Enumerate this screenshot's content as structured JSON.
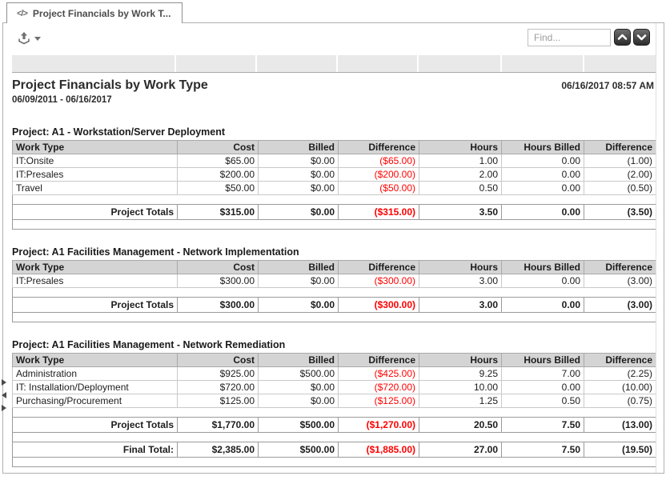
{
  "tab": {
    "icon_glyph": "</>",
    "label": "Project Financials by Work T..."
  },
  "toolbar": {
    "find_placeholder": "Find..."
  },
  "report": {
    "title": "Project Financials by Work Type",
    "date_range": "06/09/2011 - 06/16/2017",
    "generated": "06/16/2017 08:57 AM",
    "columns": [
      "Work Type",
      "Cost",
      "Billed",
      "Difference",
      "Hours",
      "Hours Billed",
      "Difference"
    ],
    "sections": [
      {
        "caption": "Project: A1 - Workstation/Server Deployment",
        "rows": [
          [
            "IT:Onsite",
            "$65.00",
            "$0.00",
            "($65.00)",
            "1.00",
            "0.00",
            "(1.00)"
          ],
          [
            "IT:Presales",
            "$200.00",
            "$0.00",
            "($200.00)",
            "2.00",
            "0.00",
            "(2.00)"
          ],
          [
            "Travel",
            "$50.00",
            "$0.00",
            "($50.00)",
            "0.50",
            "0.00",
            "(0.50)"
          ]
        ],
        "totals": {
          "label": "Project Totals",
          "values": [
            "$315.00",
            "$0.00",
            "($315.00)",
            "3.50",
            "0.00",
            "(3.50)"
          ]
        }
      },
      {
        "caption": "Project: A1 Facilities Management - Network Implementation",
        "rows": [
          [
            "IT:Presales",
            "$300.00",
            "$0.00",
            "($300.00)",
            "3.00",
            "0.00",
            "(3.00)"
          ]
        ],
        "totals": {
          "label": "Project Totals",
          "values": [
            "$300.00",
            "$0.00",
            "($300.00)",
            "3.00",
            "0.00",
            "(3.00)"
          ]
        }
      },
      {
        "caption": "Project: A1 Facilities Management - Network Remediation",
        "rows": [
          [
            "Administration",
            "$925.00",
            "$500.00",
            "($425.00)",
            "9.25",
            "7.00",
            "(2.25)"
          ],
          [
            "IT: Installation/Deployment",
            "$720.00",
            "$0.00",
            "($720.00)",
            "10.00",
            "0.00",
            "(10.00)"
          ],
          [
            "Purchasing/Procurement",
            "$125.00",
            "$0.00",
            "($125.00)",
            "1.25",
            "0.50",
            "(0.75)"
          ]
        ],
        "totals": {
          "label": "Project Totals",
          "values": [
            "$1,770.00",
            "$500.00",
            "($1,270.00)",
            "20.50",
            "7.50",
            "(13.00)"
          ]
        },
        "final": {
          "label": "Final Total:",
          "values": [
            "$2,385.00",
            "$500.00",
            "($1,885.00)",
            "27.00",
            "7.50",
            "(19.50)"
          ]
        }
      }
    ]
  },
  "colors": {
    "negative": "#ff0000",
    "header_bg": "#d4d4d4",
    "strip_bg": "#e9e9e9"
  }
}
